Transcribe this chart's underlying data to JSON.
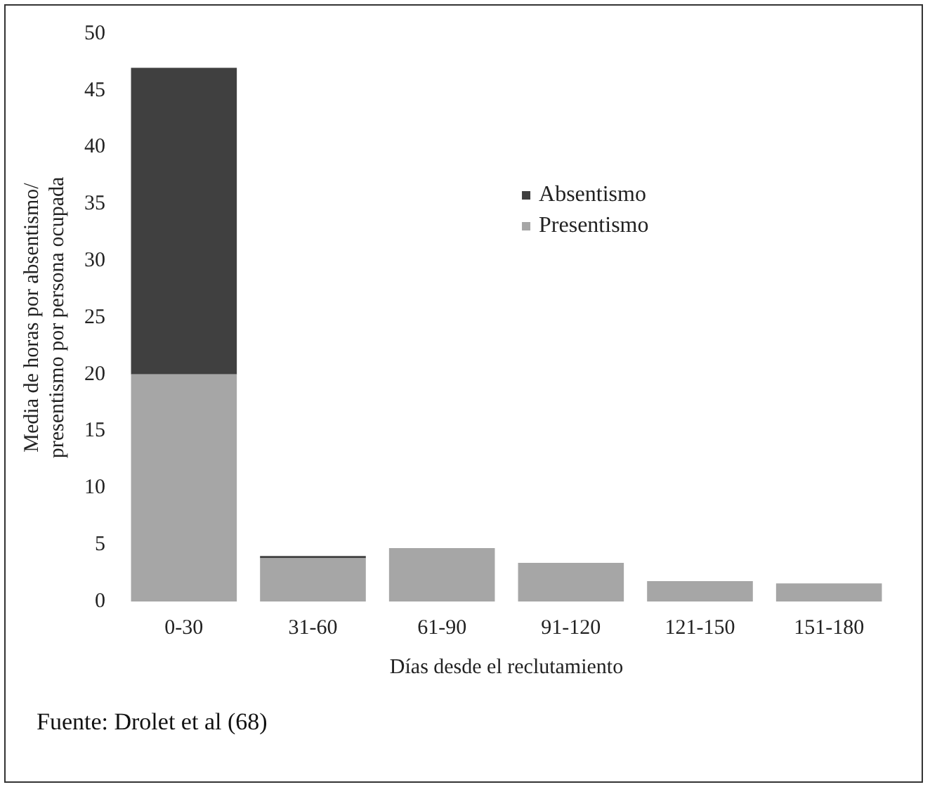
{
  "chart_data": {
    "type": "bar",
    "stacked": true,
    "xlabel": "Días desde el reclutamiento",
    "ylabel": "Media de horas por absentismo/ presentismo por persona ocupada",
    "categories": [
      "0-30",
      "31-60",
      "61-90",
      "91-120",
      "121-150",
      "151-180"
    ],
    "series": [
      {
        "name": "Presentismo",
        "color": "#a6a6a6",
        "values": [
          20,
          3.8,
          4.7,
          3.4,
          1.8,
          1.6
        ]
      },
      {
        "name": "Absentismo",
        "color": "#404040",
        "values": [
          27,
          0.2,
          0,
          0,
          0,
          0
        ]
      }
    ],
    "ylim": [
      0,
      50
    ],
    "yticks": [
      0,
      5,
      10,
      15,
      20,
      25,
      30,
      35,
      40,
      45,
      50
    ],
    "grid": false,
    "legend": "top right",
    "annotations": [
      "Fuente: Drolet et al (68)"
    ]
  }
}
